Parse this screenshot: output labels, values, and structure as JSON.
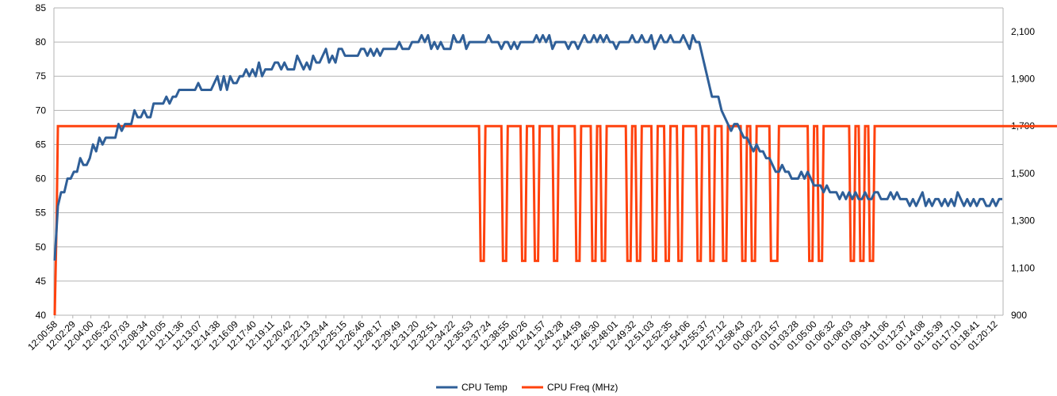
{
  "chart_data": {
    "type": "line",
    "title": "",
    "xlabel": "",
    "ylabel": "",
    "legend_position": "bottom",
    "grid": true,
    "y_left": {
      "min": 40,
      "max": 85,
      "step": 5,
      "ticks": [
        "40",
        "45",
        "50",
        "55",
        "60",
        "65",
        "70",
        "75",
        "80",
        "85"
      ]
    },
    "y_right": {
      "min": 900,
      "max": 2200,
      "ticks_values": [
        900,
        1100,
        1300,
        1500,
        1700,
        1900,
        2100
      ],
      "ticks": [
        "900",
        "1,100",
        "1,300",
        "1,500",
        "1,700",
        "1,900",
        "2,100"
      ]
    },
    "x_ticks": [
      "12:00:58",
      "12:02:29",
      "12:04:00",
      "12:05:32",
      "12:07:03",
      "12:08:34",
      "12:10:05",
      "12:11:36",
      "12:13:07",
      "12:14:38",
      "12:16:09",
      "12:17:40",
      "12:19:11",
      "12:20:42",
      "12:22:13",
      "12:23:44",
      "12:25:15",
      "12:26:46",
      "12:28:17",
      "12:29:49",
      "12:31:20",
      "12:32:51",
      "12:34:22",
      "12:35:53",
      "12:37:24",
      "12:38:55",
      "12:40:26",
      "12:41:57",
      "12:43:28",
      "12:44:59",
      "12:46:30",
      "12:48:01",
      "12:49:32",
      "12:51:03",
      "12:52:35",
      "12:54:06",
      "12:55:37",
      "12:57:12",
      "12:58:43",
      "01:00:22",
      "01:01:57",
      "01:03:28",
      "01:05:00",
      "01:06:32",
      "01:08:03",
      "01:09:34",
      "01:11:06",
      "01:12:37",
      "01:14:08",
      "01:15:39",
      "01:17:10",
      "01:18:41",
      "01:20:12"
    ],
    "series": [
      {
        "name": "CPU Temp",
        "axis": "left",
        "color": "#2f5f98",
        "values": [
          48,
          56,
          58,
          58,
          60,
          60,
          61,
          61,
          63,
          62,
          62,
          63,
          65,
          64,
          66,
          65,
          66,
          66,
          66,
          66,
          68,
          67,
          68,
          68,
          68,
          70,
          69,
          69,
          70,
          69,
          69,
          71,
          71,
          71,
          71,
          72,
          71,
          72,
          72,
          73,
          73,
          73,
          73,
          73,
          73,
          74,
          73,
          73,
          73,
          73,
          74,
          75,
          73,
          75,
          73,
          75,
          74,
          74,
          75,
          75,
          76,
          75,
          76,
          75,
          77,
          75,
          76,
          76,
          76,
          77,
          77,
          76,
          77,
          76,
          76,
          76,
          78,
          77,
          76,
          77,
          76,
          78,
          77,
          77,
          78,
          79,
          77,
          78,
          77,
          79,
          79,
          78,
          78,
          78,
          78,
          78,
          79,
          79,
          78,
          79,
          78,
          79,
          78,
          79,
          79,
          79,
          79,
          79,
          80,
          79,
          79,
          79,
          80,
          80,
          80,
          81,
          80,
          81,
          79,
          80,
          79,
          80,
          79,
          79,
          79,
          81,
          80,
          80,
          81,
          79,
          80,
          80,
          80,
          80,
          80,
          80,
          81,
          80,
          80,
          80,
          79,
          80,
          80,
          79,
          80,
          79,
          80,
          80,
          80,
          80,
          80,
          81,
          80,
          81,
          80,
          81,
          79,
          80,
          80,
          80,
          80,
          79,
          80,
          80,
          79,
          80,
          81,
          80,
          80,
          81,
          80,
          81,
          80,
          81,
          80,
          80,
          79,
          80,
          80,
          80,
          80,
          81,
          80,
          80,
          81,
          80,
          80,
          81,
          79,
          80,
          81,
          80,
          80,
          81,
          80,
          80,
          80,
          81,
          80,
          79,
          81,
          80,
          80,
          78,
          76,
          74,
          72,
          72,
          72,
          70,
          69,
          68,
          67,
          68,
          68,
          67,
          66,
          66,
          65,
          64,
          65,
          64,
          64,
          63,
          63,
          62,
          61,
          61,
          62,
          61,
          61,
          60,
          60,
          60,
          61,
          60,
          61,
          60,
          59,
          59,
          59,
          58,
          59,
          58,
          58,
          58,
          57,
          58,
          57,
          58,
          57,
          58,
          57,
          57,
          58,
          57,
          57,
          58,
          58,
          57,
          57,
          57,
          58,
          57,
          58,
          57,
          57,
          57,
          56,
          57,
          56,
          57,
          58,
          56,
          57,
          56,
          57,
          57,
          56,
          57,
          56,
          57,
          56,
          58,
          57,
          56,
          57,
          56,
          57,
          56,
          57,
          57,
          56,
          56,
          57,
          56,
          57,
          57
        ]
      },
      {
        "name": "CPU Freq (MHz)",
        "axis": "right",
        "color": "#ff420e",
        "points": [
          [
            0,
            900
          ],
          [
            0.6,
            1300
          ],
          [
            1,
            1700
          ],
          [
            133,
            1700
          ],
          [
            133.5,
            1130
          ],
          [
            134.5,
            1130
          ],
          [
            135,
            1700
          ],
          [
            140,
            1700
          ],
          [
            140.5,
            1130
          ],
          [
            141.5,
            1130
          ],
          [
            142,
            1700
          ],
          [
            146,
            1700
          ],
          [
            146.5,
            1130
          ],
          [
            147.5,
            1130
          ],
          [
            148,
            1700
          ],
          [
            150,
            1700
          ],
          [
            150.5,
            1130
          ],
          [
            151.5,
            1130
          ],
          [
            152,
            1700
          ],
          [
            156,
            1700
          ],
          [
            156.5,
            1130
          ],
          [
            157.5,
            1130
          ],
          [
            158,
            1700
          ],
          [
            163,
            1700
          ],
          [
            163.5,
            1130
          ],
          [
            164.5,
            1130
          ],
          [
            165,
            1700
          ],
          [
            168,
            1700
          ],
          [
            168.5,
            1130
          ],
          [
            169.5,
            1130
          ],
          [
            170,
            1700
          ],
          [
            171,
            1700
          ],
          [
            171.5,
            1130
          ],
          [
            172.5,
            1130
          ],
          [
            173,
            1700
          ],
          [
            179,
            1700
          ],
          [
            179.5,
            1130
          ],
          [
            180.5,
            1130
          ],
          [
            181,
            1700
          ],
          [
            182,
            1700
          ],
          [
            182.5,
            1130
          ],
          [
            183.5,
            1130
          ],
          [
            184,
            1700
          ],
          [
            187,
            1700
          ],
          [
            187.5,
            1130
          ],
          [
            188.5,
            1130
          ],
          [
            189,
            1700
          ],
          [
            191,
            1700
          ],
          [
            191.5,
            1130
          ],
          [
            192.5,
            1130
          ],
          [
            193,
            1700
          ],
          [
            195,
            1700
          ],
          [
            195.5,
            1130
          ],
          [
            196.5,
            1130
          ],
          [
            197,
            1700
          ],
          [
            201,
            1700
          ],
          [
            201.5,
            1130
          ],
          [
            202.5,
            1130
          ],
          [
            203,
            1700
          ],
          [
            205,
            1700
          ],
          [
            205.5,
            1130
          ],
          [
            206.5,
            1130
          ],
          [
            207,
            1700
          ],
          [
            209,
            1700
          ],
          [
            209.5,
            1130
          ],
          [
            210.5,
            1130
          ],
          [
            211,
            1700
          ],
          [
            215,
            1700
          ],
          [
            215.5,
            1130
          ],
          [
            216.5,
            1130
          ],
          [
            217,
            1700
          ],
          [
            218,
            1700
          ],
          [
            218.5,
            1130
          ],
          [
            219.5,
            1130
          ],
          [
            220,
            1700
          ],
          [
            224,
            1700
          ],
          [
            224.5,
            1130
          ],
          [
            226.5,
            1130
          ],
          [
            227,
            1700
          ],
          [
            236,
            1700
          ],
          [
            236.5,
            1130
          ],
          [
            237.5,
            1130
          ],
          [
            238,
            1700
          ],
          [
            239,
            1700
          ],
          [
            239.5,
            1130
          ],
          [
            240.5,
            1130
          ],
          [
            241,
            1700
          ],
          [
            249,
            1700
          ],
          [
            249.5,
            1130
          ],
          [
            250.5,
            1130
          ],
          [
            251,
            1700
          ],
          [
            252,
            1700
          ],
          [
            252.5,
            1130
          ],
          [
            253.5,
            1130
          ],
          [
            254,
            1700
          ],
          [
            255,
            1700
          ],
          [
            255.5,
            1130
          ],
          [
            256.5,
            1130
          ],
          [
            257,
            1700
          ],
          [
            325,
            1700
          ]
        ]
      }
    ]
  }
}
